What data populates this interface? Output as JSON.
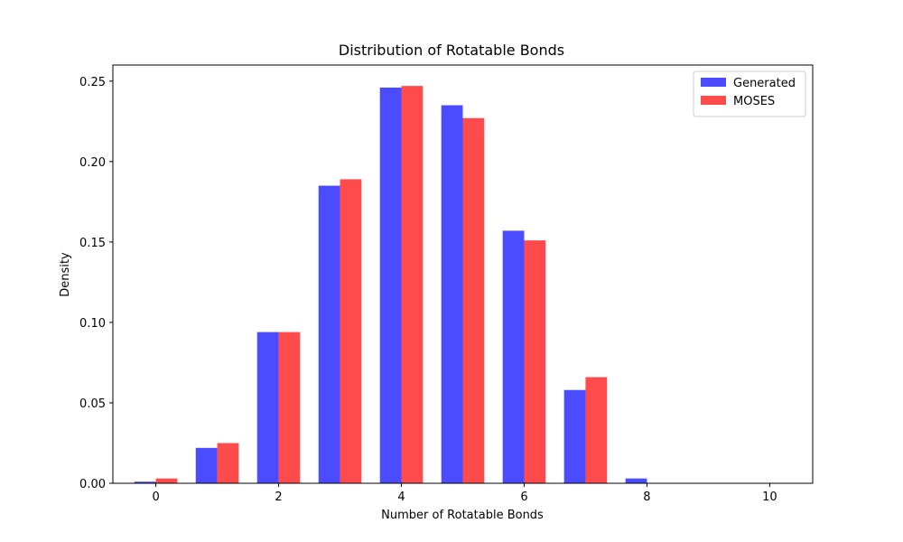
{
  "chart_data": {
    "type": "bar",
    "title": "Distribution of Rotatable Bonds",
    "xlabel": "Number of Rotatable Bonds",
    "ylabel": "Density",
    "xlim": [
      -0.7,
      10.7
    ],
    "ylim": [
      0,
      0.26
    ],
    "xticks": [
      0,
      2,
      4,
      6,
      8,
      10
    ],
    "yticks": [
      0.0,
      0.05,
      0.1,
      0.15,
      0.2,
      0.25
    ],
    "ytick_labels": [
      "0.00",
      "0.05",
      "0.10",
      "0.15",
      "0.20",
      "0.25"
    ],
    "bar_width": 0.35,
    "x": [
      0,
      1,
      2,
      3,
      4,
      5,
      6,
      7,
      8,
      9,
      10
    ],
    "series": [
      {
        "name": "Generated",
        "color": "#4b4bff",
        "offset": -0.175,
        "values": [
          0.001,
          0.022,
          0.094,
          0.185,
          0.246,
          0.235,
          0.157,
          0.058,
          0.003,
          0,
          0
        ]
      },
      {
        "name": "MOSES",
        "color": "#ff4b4b",
        "offset": 0.175,
        "values": [
          0.003,
          0.025,
          0.094,
          0.189,
          0.247,
          0.227,
          0.151,
          0.066,
          0.0002,
          0,
          0
        ]
      }
    ],
    "legend_position": "top-right",
    "grid": false
  }
}
